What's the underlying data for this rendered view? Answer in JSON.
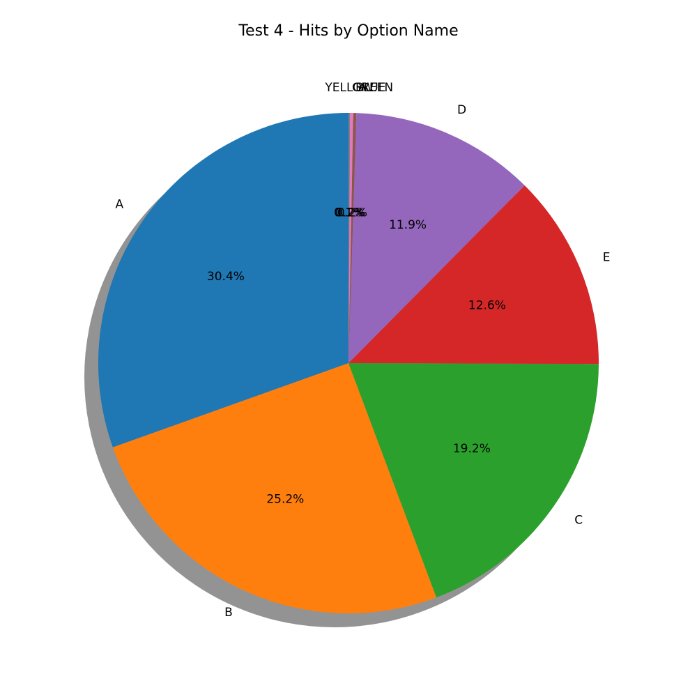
{
  "chart_data": {
    "type": "pie",
    "title": "Test 4 - Hits by Option Name",
    "categories": [
      "A",
      "B",
      "C",
      "E",
      "D",
      "BLUE",
      "GREEN",
      "YELLOW"
    ],
    "values": [
      30.4,
      25.2,
      19.2,
      12.6,
      11.9,
      0.2,
      0.2,
      0.1
    ],
    "value_labels": [
      "30.4%",
      "25.2%",
      "19.2%",
      "12.6%",
      "11.9%",
      "0.2%",
      "0.2%",
      "0.1%"
    ],
    "colors": [
      "#1f77b4",
      "#ff7f0e",
      "#2ca02c",
      "#d62728",
      "#9467bd",
      "#8c564b",
      "#e377c2",
      "#7f7f7f"
    ],
    "start_angle": 90,
    "shadow": true
  }
}
